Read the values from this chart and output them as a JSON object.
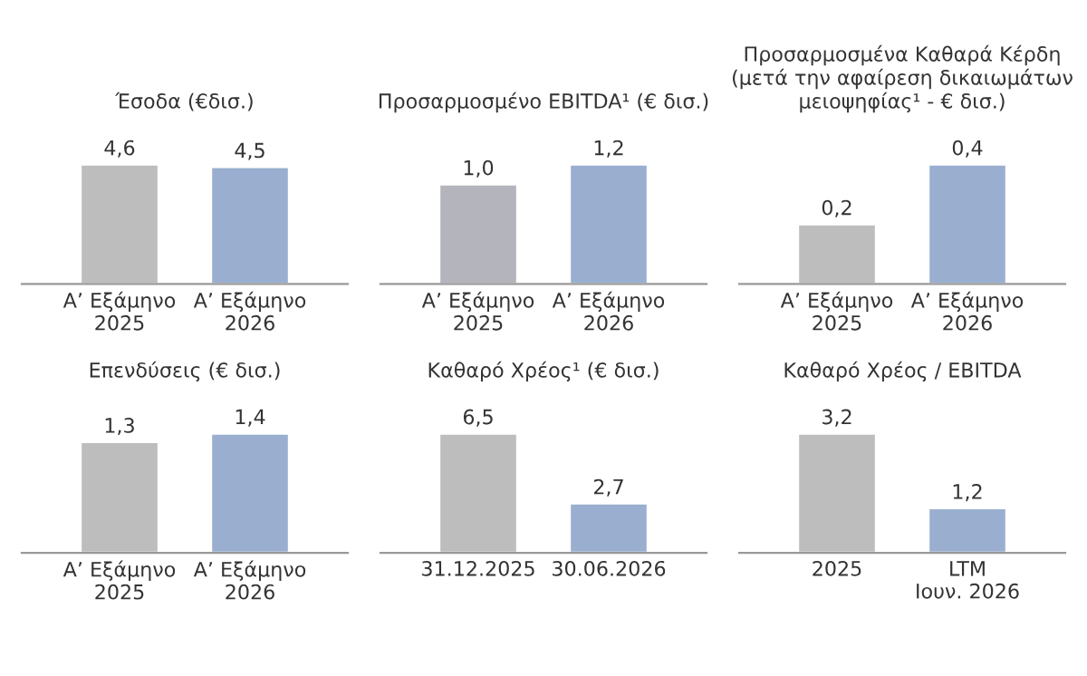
{
  "chart_data": [
    {
      "type": "bar",
      "title": "Έσοδα (€δισ.)",
      "categories": [
        "Α’ Εξάμηνο\n2025",
        "Α’ Εξάμηνο\n2026"
      ],
      "values": [
        4.6,
        4.5
      ],
      "colors": [
        "#bdbdbd",
        "#9aafd0"
      ],
      "value_labels": [
        "4,6",
        "4,5"
      ]
    },
    {
      "type": "bar",
      "title": "Προσαρμοσμένο EBITDA¹ (€ δισ.)",
      "categories": [
        "Α’ Εξάμηνο\n2025",
        "Α’ Εξάμηνο\n2026"
      ],
      "values": [
        1.0,
        1.2
      ],
      "colors": [
        "#b4b4bc",
        "#9aafd0"
      ],
      "value_labels": [
        "1,0",
        "1,2"
      ]
    },
    {
      "type": "bar",
      "title": "Προσαρμοσμένα Καθαρά Κέρδη\n(μετά την αφαίρεση δικαιωμάτων\nμειοψηφίας¹ - € δισ.)",
      "categories": [
        "Α’ Εξάμηνο\n2025",
        "Α’ Εξάμηνο\n2026"
      ],
      "values": [
        0.2,
        0.4
      ],
      "colors": [
        "#bdbdbd",
        "#9aafd0"
      ],
      "value_labels": [
        "0,2",
        "0,4"
      ]
    },
    {
      "type": "bar",
      "title": "Επενδύσεις (€ δισ.)",
      "categories": [
        "Α’ Εξάμηνο\n2025",
        "Α’ Εξάμηνο\n2026"
      ],
      "values": [
        1.3,
        1.4
      ],
      "colors": [
        "#bdbdbd",
        "#9aafd0"
      ],
      "value_labels": [
        "1,3",
        "1,4"
      ]
    },
    {
      "type": "bar",
      "title": "Καθαρό Χρέος¹ (€ δισ.)",
      "categories": [
        "31.12.2025",
        "30.06.2026"
      ],
      "values": [
        6.5,
        2.7
      ],
      "colors": [
        "#bdbdbd",
        "#9aafd0"
      ],
      "value_labels": [
        "6,5",
        "2,7"
      ]
    },
    {
      "type": "bar",
      "title": "Καθαρό Χρέος / EBITDA",
      "categories": [
        "2025",
        "LTM\nΙουν. 2026"
      ],
      "values": [
        3.2,
        1.2
      ],
      "colors": [
        "#bdbdbd",
        "#9aafd0"
      ],
      "value_labels": [
        "3,2",
        "1,2"
      ]
    }
  ]
}
